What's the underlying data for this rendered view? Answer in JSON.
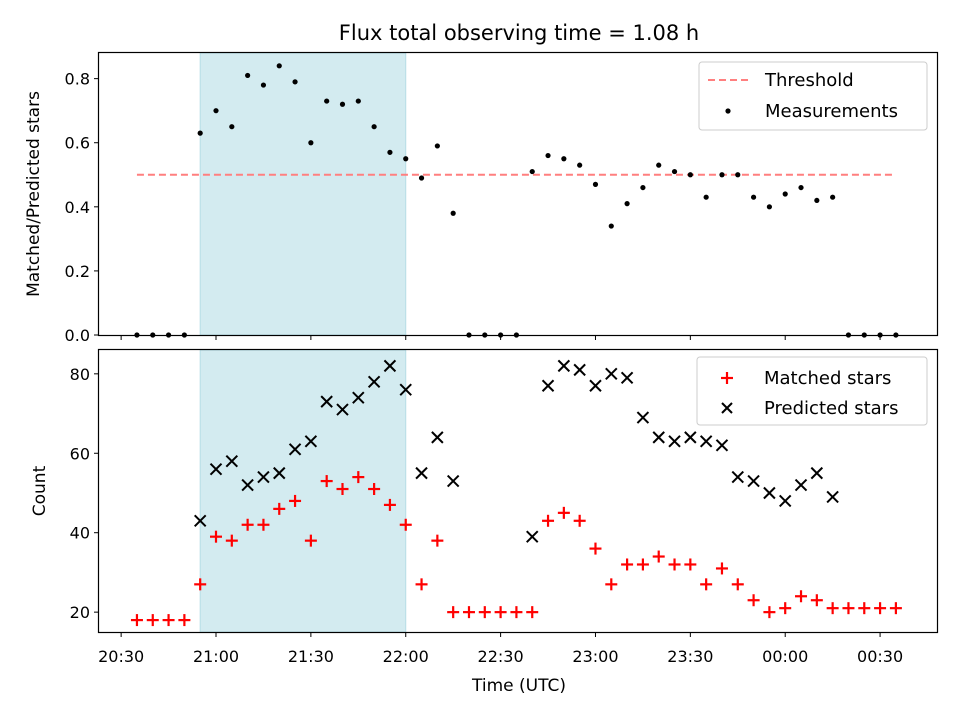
{
  "chart_data": {
    "type": "scatter",
    "title": "Flux total observing time = 1.08 h",
    "xlabel": "Time (UTC)",
    "x_tick_labels": [
      "20:30",
      "21:00",
      "21:30",
      "22:00",
      "22:30",
      "23:00",
      "23:30",
      "00:00",
      "00:30"
    ],
    "x_tick_times": [
      "20:30",
      "21:00",
      "21:30",
      "22:00",
      "22:30",
      "23:00",
      "23:30",
      "00:00",
      "00:30"
    ],
    "x_range": [
      "20:23",
      "00:48"
    ],
    "shaded_interval": [
      "20:55",
      "22:00"
    ],
    "shade_color": "#d3ebf0",
    "panels": [
      {
        "ylabel": "Matched/Predicted stars",
        "ylim": [
          0,
          0.88
        ],
        "yticks": [
          0.0,
          0.2,
          0.4,
          0.6,
          0.8
        ],
        "ytick_labels": [
          "0.0",
          "0.2",
          "0.4",
          "0.6",
          "0.8"
        ],
        "legend_position": "upper right",
        "series": [
          {
            "name": "Threshold",
            "style": "dashed-line",
            "color": "#ff7f7f",
            "x": [
              "20:35",
              "00:35"
            ],
            "y": [
              0.5,
              0.5
            ]
          },
          {
            "name": "Measurements",
            "style": "dot",
            "color": "#000000",
            "x": [
              "20:35",
              "20:40",
              "20:45",
              "20:50",
              "20:55",
              "21:00",
              "21:05",
              "21:10",
              "21:15",
              "21:20",
              "21:25",
              "21:30",
              "21:35",
              "21:40",
              "21:45",
              "21:50",
              "21:55",
              "22:00",
              "22:05",
              "22:10",
              "22:15",
              "22:20",
              "22:25",
              "22:30",
              "22:35",
              "22:40",
              "22:45",
              "22:50",
              "22:55",
              "23:00",
              "23:05",
              "23:10",
              "23:15",
              "23:20",
              "23:25",
              "23:30",
              "23:35",
              "23:40",
              "23:45",
              "23:50",
              "23:55",
              "00:00",
              "00:05",
              "00:10",
              "00:15",
              "00:20",
              "00:25",
              "00:30",
              "00:35"
            ],
            "y": [
              0.0,
              0.0,
              0.0,
              0.0,
              0.63,
              0.7,
              0.65,
              0.81,
              0.78,
              0.84,
              0.79,
              0.6,
              0.73,
              0.72,
              0.73,
              0.65,
              0.57,
              0.55,
              0.49,
              0.59,
              0.38,
              0.0,
              0.0,
              0.0,
              0.0,
              0.51,
              0.56,
              0.55,
              0.53,
              0.47,
              0.34,
              0.41,
              0.46,
              0.53,
              0.51,
              0.5,
              0.43,
              0.5,
              0.5,
              0.43,
              0.4,
              0.44,
              0.46,
              0.42,
              0.43,
              0.0,
              0.0,
              0.0,
              0.0
            ]
          }
        ]
      },
      {
        "ylabel": "Count",
        "ylim": [
          15,
          86
        ],
        "yticks": [
          20,
          40,
          60,
          80
        ],
        "ytick_labels": [
          "20",
          "40",
          "60",
          "80"
        ],
        "legend_position": "upper right",
        "series": [
          {
            "name": "Matched stars",
            "style": "plus",
            "color": "#ff0000",
            "x": [
              "20:35",
              "20:40",
              "20:45",
              "20:50",
              "20:55",
              "21:00",
              "21:05",
              "21:10",
              "21:15",
              "21:20",
              "21:25",
              "21:30",
              "21:35",
              "21:40",
              "21:45",
              "21:50",
              "21:55",
              "22:00",
              "22:05",
              "22:10",
              "22:15",
              "22:20",
              "22:25",
              "22:30",
              "22:35",
              "22:40",
              "22:45",
              "22:50",
              "22:55",
              "23:00",
              "23:05",
              "23:10",
              "23:15",
              "23:20",
              "23:25",
              "23:30",
              "23:35",
              "23:40",
              "23:45",
              "23:50",
              "23:55",
              "00:00",
              "00:05",
              "00:10",
              "00:15",
              "00:20",
              "00:25",
              "00:30",
              "00:35"
            ],
            "y": [
              18,
              18,
              18,
              18,
              27,
              39,
              38,
              42,
              42,
              46,
              48,
              38,
              53,
              51,
              54,
              51,
              47,
              42,
              27,
              38,
              20,
              20,
              20,
              20,
              20,
              20,
              43,
              45,
              43,
              36,
              27,
              32,
              32,
              34,
              32,
              32,
              27,
              31,
              27,
              23,
              20,
              21,
              24,
              23,
              21,
              21,
              21,
              21,
              21
            ]
          },
          {
            "name": "Predicted stars",
            "style": "x",
            "color": "#000000",
            "x": [
              "20:55",
              "21:00",
              "21:05",
              "21:10",
              "21:15",
              "21:20",
              "21:25",
              "21:30",
              "21:35",
              "21:40",
              "21:45",
              "21:50",
              "21:55",
              "22:00",
              "22:05",
              "22:10",
              "22:15",
              "22:40",
              "22:45",
              "22:50",
              "22:55",
              "23:00",
              "23:05",
              "23:10",
              "23:15",
              "23:20",
              "23:25",
              "23:30",
              "23:35",
              "23:40",
              "23:45",
              "23:50",
              "23:55",
              "00:00",
              "00:05",
              "00:10",
              "00:15"
            ],
            "y": [
              43,
              56,
              58,
              52,
              54,
              55,
              61,
              63,
              73,
              71,
              74,
              78,
              82,
              76,
              55,
              64,
              53,
              39,
              77,
              82,
              81,
              77,
              80,
              79,
              69,
              64,
              63,
              64,
              63,
              62,
              54,
              53,
              50,
              48,
              52,
              55,
              49
            ]
          }
        ]
      }
    ]
  }
}
